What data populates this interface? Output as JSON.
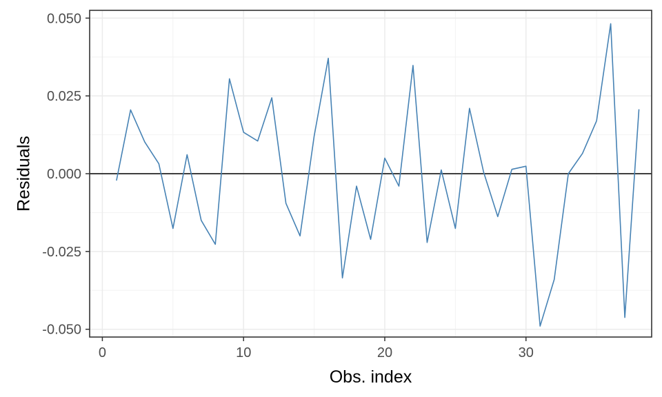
{
  "chart_data": {
    "type": "line",
    "title": "",
    "xlabel": "Obs. index",
    "ylabel": "Residuals",
    "xlim": [
      -0.9,
      38.9
    ],
    "ylim": [
      -0.0525,
      0.0525
    ],
    "x_ticks": [
      0,
      10,
      20,
      30
    ],
    "x_tick_labels": [
      "0",
      "10",
      "20",
      "30"
    ],
    "y_ticks": [
      -0.05,
      -0.025,
      0.0,
      0.025,
      0.05
    ],
    "y_tick_labels": [
      "-0.050",
      "-0.025",
      "0.000",
      "0.025",
      "0.050"
    ],
    "grid": true,
    "reference_line_y": 0,
    "series": [
      {
        "color": "#4682b4",
        "x": [
          1,
          2,
          3,
          4,
          5,
          6,
          7,
          8,
          9,
          10,
          11,
          12,
          13,
          14,
          15,
          16,
          17,
          18,
          19,
          20,
          21,
          22,
          23,
          24,
          25,
          26,
          27,
          28,
          29,
          30,
          31,
          32,
          33,
          34,
          35,
          36,
          37,
          38
        ],
        "y": [
          -0.0022,
          0.0205,
          0.0102,
          0.0032,
          -0.0176,
          0.0061,
          -0.015,
          -0.0227,
          0.0305,
          0.0133,
          0.0105,
          0.0244,
          -0.0095,
          -0.02,
          0.0121,
          0.0371,
          -0.0335,
          -0.004,
          -0.0211,
          0.005,
          -0.004,
          0.0348,
          -0.0221,
          0.0012,
          -0.0176,
          0.021,
          0.0005,
          -0.0138,
          0.0014,
          0.0024,
          -0.049,
          -0.034,
          0.0,
          0.0065,
          0.017,
          0.0482,
          -0.0462,
          0.0207
        ]
      }
    ]
  }
}
